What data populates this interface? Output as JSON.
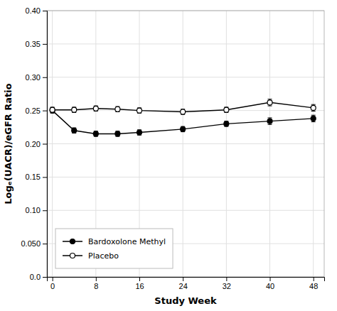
{
  "chart_data": {
    "type": "line",
    "xlabel": "Study Week",
    "ylabel": "Logₑ(UACR)/eGFR Ratio",
    "x": [
      0,
      4,
      8,
      12,
      16,
      24,
      32,
      40,
      48
    ],
    "series": [
      {
        "name": "Bardoxolone Methyl",
        "color": "#000000",
        "marker": "circle",
        "line_style": "solid",
        "values": [
          0.25,
          0.22,
          0.215,
          0.215,
          0.217,
          0.222,
          0.23,
          0.234,
          0.238
        ],
        "errors": [
          0.004,
          0.004,
          0.004,
          0.004,
          0.004,
          0.004,
          0.004,
          0.005,
          0.005
        ]
      },
      {
        "name": "Placebo",
        "color": "#000000",
        "marker": "circle-open",
        "line_style": "solid",
        "values": [
          0.251,
          0.251,
          0.253,
          0.252,
          0.25,
          0.248,
          0.251,
          0.262,
          0.254
        ],
        "errors": [
          0.004,
          0.004,
          0.004,
          0.004,
          0.004,
          0.004,
          0.004,
          0.005,
          0.005
        ]
      }
    ],
    "xlim": [
      -1,
      50
    ],
    "ylim": [
      0.0,
      0.4
    ],
    "xticks": [
      0,
      8,
      16,
      24,
      32,
      40,
      48
    ],
    "yticks": [
      {
        "value": 0.0,
        "label": "0.0"
      },
      {
        "value": 0.05,
        "label": "0.050"
      },
      {
        "value": 0.1,
        "label": "0.10"
      },
      0.15,
      {
        "value": 0.2,
        "label": "0.20"
      },
      0.25,
      {
        "value": 0.3,
        "label": "0.30"
      },
      0.35,
      {
        "value": 0.4,
        "label": "0.40"
      }
    ],
    "grid": true,
    "legend": "lower left"
  }
}
